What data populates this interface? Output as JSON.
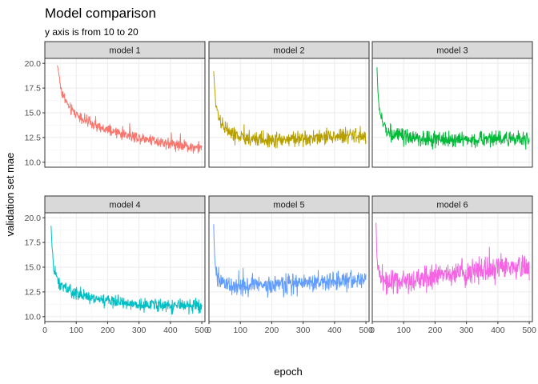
{
  "title": "Model comparison",
  "subtitle": "y axis is from 10 to 20",
  "chart_data": {
    "type": "line",
    "layout": "facet-grid 2x3",
    "xlabel": "epoch",
    "ylabel": "validation set mae",
    "xlim": [
      0,
      510
    ],
    "ylim": [
      9.5,
      20.5
    ],
    "x_ticks": [
      0,
      100,
      200,
      300,
      400,
      500
    ],
    "y_ticks": [
      10.0,
      12.5,
      15.0,
      17.5,
      20.0
    ],
    "x_tick_labels": [
      "0",
      "100",
      "200",
      "300",
      "400",
      "500"
    ],
    "y_tick_labels": [
      "10.0",
      "12.5",
      "15.0",
      "17.5",
      "20.0"
    ],
    "grid": true,
    "legend": "none",
    "series": [
      {
        "name": "model 1",
        "color": "#F8766D",
        "points": [
          [
            40,
            19.8
          ],
          [
            45,
            18.9
          ],
          [
            50,
            17.6
          ],
          [
            60,
            16.6
          ],
          [
            70,
            16.0
          ],
          [
            80,
            15.4
          ],
          [
            100,
            14.9
          ],
          [
            120,
            14.4
          ],
          [
            140,
            14.0
          ],
          [
            160,
            13.7
          ],
          [
            180,
            13.4
          ],
          [
            200,
            13.2
          ],
          [
            230,
            13.0
          ],
          [
            260,
            12.8
          ],
          [
            300,
            12.5
          ],
          [
            340,
            12.3
          ],
          [
            380,
            12.0
          ],
          [
            420,
            11.8
          ],
          [
            460,
            11.6
          ],
          [
            500,
            11.4
          ]
        ]
      },
      {
        "name": "model 2",
        "color": "#B79F00",
        "points": [
          [
            15,
            19.2
          ],
          [
            18,
            17.5
          ],
          [
            22,
            16.0
          ],
          [
            28,
            15.0
          ],
          [
            40,
            14.0
          ],
          [
            60,
            13.2
          ],
          [
            80,
            12.7
          ],
          [
            120,
            12.4
          ],
          [
            160,
            12.3
          ],
          [
            200,
            12.3
          ],
          [
            250,
            12.3
          ],
          [
            300,
            12.4
          ],
          [
            350,
            12.5
          ],
          [
            400,
            12.6
          ],
          [
            450,
            12.7
          ],
          [
            500,
            12.6
          ]
        ]
      },
      {
        "name": "model 3",
        "color": "#00BA38",
        "points": [
          [
            15,
            19.6
          ],
          [
            18,
            17.0
          ],
          [
            22,
            15.5
          ],
          [
            30,
            14.2
          ],
          [
            45,
            13.3
          ],
          [
            70,
            12.8
          ],
          [
            100,
            12.5
          ],
          [
            150,
            12.4
          ],
          [
            200,
            12.3
          ],
          [
            250,
            12.3
          ],
          [
            300,
            12.3
          ],
          [
            350,
            12.3
          ],
          [
            400,
            12.4
          ],
          [
            450,
            12.4
          ],
          [
            500,
            12.3
          ]
        ]
      },
      {
        "name": "model 4",
        "color": "#00BFC4",
        "points": [
          [
            20,
            19.2
          ],
          [
            23,
            17.0
          ],
          [
            28,
            15.0
          ],
          [
            35,
            14.0
          ],
          [
            50,
            13.2
          ],
          [
            70,
            12.7
          ],
          [
            100,
            12.3
          ],
          [
            150,
            11.9
          ],
          [
            200,
            11.6
          ],
          [
            250,
            11.4
          ],
          [
            300,
            11.3
          ],
          [
            350,
            11.2
          ],
          [
            400,
            11.1
          ],
          [
            450,
            11.1
          ],
          [
            500,
            11.0
          ]
        ]
      },
      {
        "name": "model 5",
        "color": "#619CFF",
        "points": [
          [
            15,
            18.8
          ],
          [
            17,
            17.0
          ],
          [
            20,
            15.0
          ],
          [
            25,
            14.0
          ],
          [
            35,
            13.4
          ],
          [
            60,
            13.2
          ],
          [
            100,
            13.1
          ],
          [
            150,
            13.1
          ],
          [
            200,
            13.2
          ],
          [
            250,
            13.3
          ],
          [
            300,
            13.4
          ],
          [
            350,
            13.5
          ],
          [
            400,
            13.6
          ],
          [
            450,
            13.7
          ],
          [
            500,
            13.8
          ]
        ]
      },
      {
        "name": "model 6",
        "color": "#F564E3",
        "points": [
          [
            12,
            19.5
          ],
          [
            14,
            17.0
          ],
          [
            17,
            15.0
          ],
          [
            22,
            14.0
          ],
          [
            40,
            13.5
          ],
          [
            80,
            13.5
          ],
          [
            120,
            13.7
          ],
          [
            160,
            13.9
          ],
          [
            200,
            14.1
          ],
          [
            250,
            14.3
          ],
          [
            300,
            14.5
          ],
          [
            350,
            14.7
          ],
          [
            400,
            14.8
          ],
          [
            450,
            14.9
          ],
          [
            500,
            15.0
          ]
        ]
      }
    ]
  }
}
